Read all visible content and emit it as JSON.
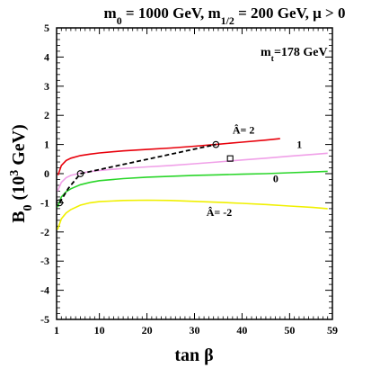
{
  "chart_data": {
    "type": "line",
    "title_html": [
      "m",
      "0",
      " = 1000 GeV, m",
      "1/2",
      " = 200 GeV, μ > 0"
    ],
    "xlabel": "tan β",
    "ylabel_parts": [
      "B",
      "0",
      " (10",
      "3",
      " GeV)"
    ],
    "annotation_mt": [
      "m",
      "t",
      "=178 GeV"
    ],
    "xlim": [
      1,
      59
    ],
    "ylim": [
      -5,
      5
    ],
    "x_ticks": [
      1,
      10,
      20,
      30,
      40,
      50,
      59
    ],
    "y_ticks": [
      -5,
      -4,
      -3,
      -2,
      -1,
      0,
      1,
      2,
      3,
      4,
      5
    ],
    "grid": false,
    "series": [
      {
        "label": "Â= 2",
        "color": "#e8000b",
        "x": [
          1.3,
          2,
          3,
          4,
          6,
          8,
          10,
          15,
          20,
          25,
          30,
          35,
          40,
          45,
          48
        ],
        "y": [
          -0.05,
          0.28,
          0.45,
          0.53,
          0.62,
          0.67,
          0.71,
          0.78,
          0.83,
          0.88,
          0.94,
          1.01,
          1.08,
          1.15,
          1.2
        ]
      },
      {
        "label": "1",
        "color": "#f0a0e8",
        "x": [
          1.2,
          2,
          3,
          4,
          6,
          8,
          10,
          15,
          20,
          25,
          30,
          35,
          40,
          45,
          50,
          55,
          58
        ],
        "y": [
          -0.6,
          -0.3,
          -0.14,
          -0.06,
          0.02,
          0.07,
          0.11,
          0.18,
          0.23,
          0.28,
          0.34,
          0.4,
          0.47,
          0.53,
          0.6,
          0.66,
          0.7
        ]
      },
      {
        "label": "0",
        "color": "#2ad62a",
        "x": [
          1.2,
          2,
          3,
          4,
          6,
          8,
          10,
          15,
          20,
          25,
          30,
          35,
          40,
          45,
          50,
          55,
          58
        ],
        "y": [
          -1.15,
          -0.8,
          -0.62,
          -0.52,
          -0.38,
          -0.3,
          -0.24,
          -0.17,
          -0.12,
          -0.09,
          -0.06,
          -0.04,
          -0.02,
          0.0,
          0.03,
          0.06,
          0.08
        ]
      },
      {
        "label": "Â= -2",
        "color": "#f0f000",
        "x": [
          1.2,
          2,
          3,
          4,
          6,
          8,
          10,
          15,
          20,
          25,
          30,
          35,
          40,
          45,
          50,
          55,
          58
        ],
        "y": [
          -1.92,
          -1.55,
          -1.35,
          -1.23,
          -1.08,
          -1.0,
          -0.96,
          -0.92,
          -0.91,
          -0.92,
          -0.95,
          -0.98,
          -1.02,
          -1.06,
          -1.11,
          -1.16,
          -1.2
        ]
      }
    ],
    "dashed_path": {
      "color": "#000000",
      "x": [
        1.6,
        3.5,
        6,
        34.5
      ],
      "y": [
        -1.0,
        -0.5,
        0.0,
        1.0
      ]
    },
    "circle_markers": [
      {
        "x": 1.6,
        "y": -1.0
      },
      {
        "x": 6,
        "y": 0.0
      },
      {
        "x": 34.5,
        "y": 1.0
      }
    ],
    "square_marker": {
      "x": 37.5,
      "y": 0.52
    },
    "labels": [
      {
        "text": "Â= 2",
        "x": 38,
        "y": 1.38
      },
      {
        "text": "1",
        "x": 51.5,
        "y": 0.88
      },
      {
        "text": "0",
        "x": 46.5,
        "y": -0.3
      },
      {
        "text": "Â= -2",
        "x": 32.5,
        "y": -1.45
      }
    ]
  }
}
